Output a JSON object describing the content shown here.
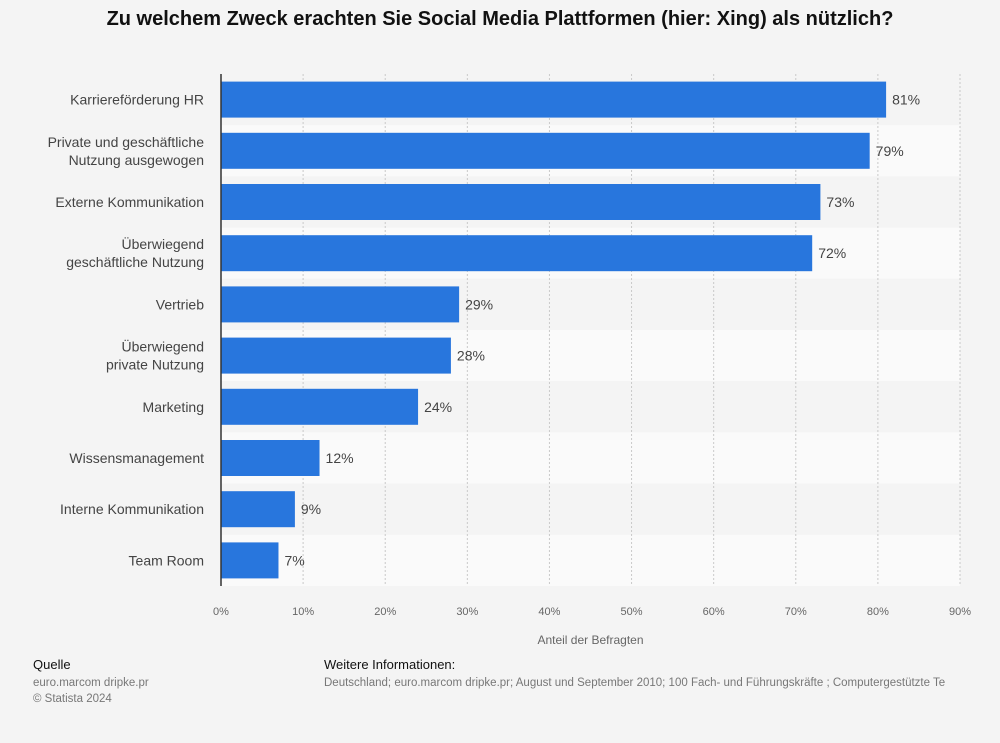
{
  "title": "Zu welchem Zweck erachten Sie Social Media Plattformen (hier: Xing) als nützlich?",
  "chart_data": {
    "type": "bar",
    "orientation": "horizontal",
    "categories": [
      [
        "Karriereförderung HR"
      ],
      [
        "Private und geschäftliche",
        "Nutzung ausgewogen"
      ],
      [
        "Externe Kommunikation"
      ],
      [
        "Überwiegend",
        "geschäftliche Nutzung"
      ],
      [
        "Vertrieb"
      ],
      [
        "Überwiegend",
        "private Nutzung"
      ],
      [
        "Marketing"
      ],
      [
        "Wissensmanagement"
      ],
      [
        "Interne Kommunikation"
      ],
      [
        "Team Room"
      ]
    ],
    "values": [
      81,
      79,
      73,
      72,
      29,
      28,
      24,
      12,
      9,
      7
    ],
    "value_labels": [
      "81%",
      "79%",
      "73%",
      "72%",
      "29%",
      "28%",
      "24%",
      "12%",
      "9%",
      "7%"
    ],
    "xlim": [
      0,
      90
    ],
    "ticks": [
      0,
      10,
      20,
      30,
      40,
      50,
      60,
      70,
      80,
      90
    ],
    "tick_labels": [
      "0%",
      "10%",
      "20%",
      "30%",
      "40%",
      "50%",
      "60%",
      "70%",
      "80%",
      "90%"
    ],
    "xlabel": "Anteil der Befragten",
    "bar_color": "#2876dd",
    "grid": true
  },
  "footer": {
    "source_heading": "Quelle",
    "source_lines": [
      "euro.marcom dripke.pr",
      "© Statista 2024"
    ],
    "info_heading": "Weitere Informationen:",
    "info_text": "Deutschland; euro.marcom dripke.pr; August und September 2010; 100 Fach- und Führungskräfte ; Computergestützte Te"
  }
}
